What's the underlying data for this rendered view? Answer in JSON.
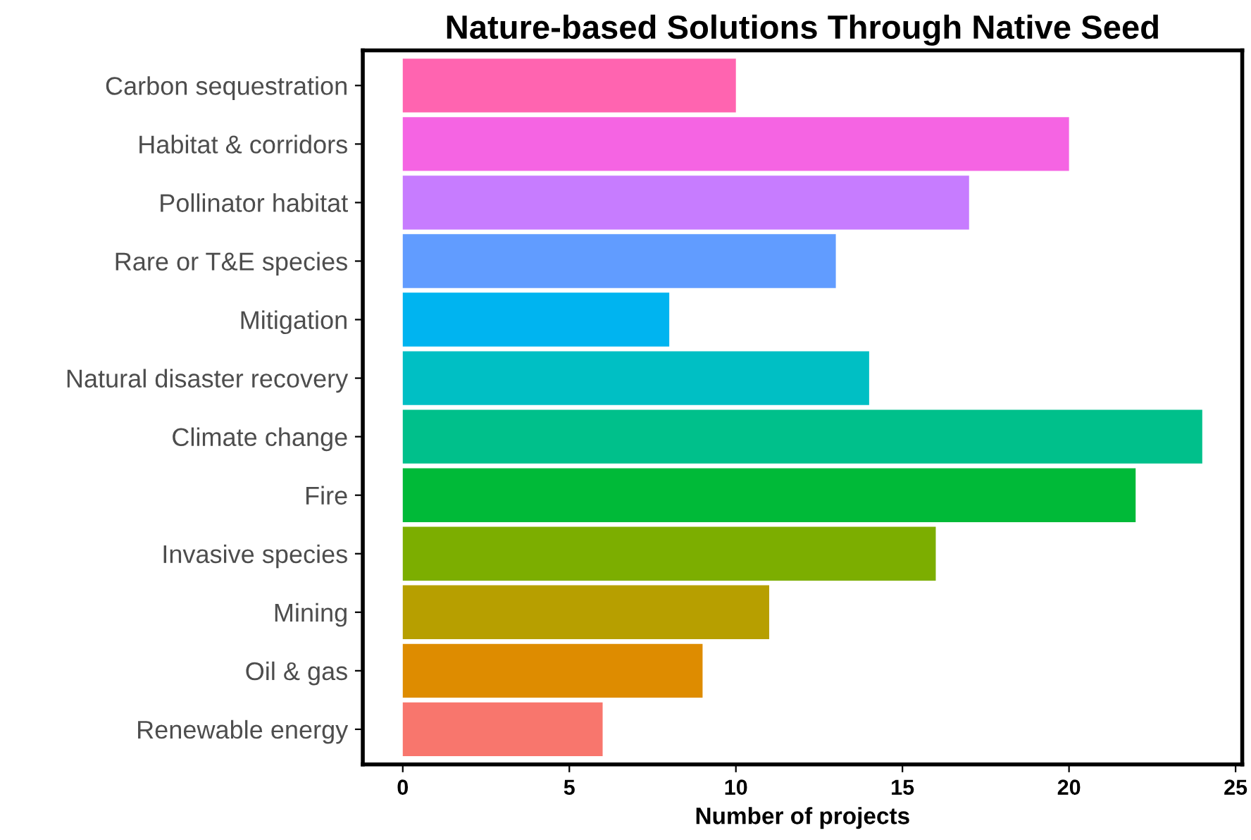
{
  "chart_data": {
    "type": "bar",
    "orientation": "horizontal",
    "title": "Nature-based Solutions Through Native Seed",
    "xlabel": "Number of projects",
    "categories": [
      "Carbon sequestration",
      "Habitat & corridors",
      "Pollinator habitat",
      "Rare or T&E species",
      "Mitigation",
      "Natural disaster recovery",
      "Climate change",
      "Fire",
      "Invasive species",
      "Mining",
      "Oil & gas",
      "Renewable energy"
    ],
    "values": [
      10,
      20,
      17,
      13,
      8,
      14,
      24,
      22,
      16,
      11,
      9,
      6
    ],
    "colors": [
      "#FF64B0",
      "#F564E3",
      "#C77CFF",
      "#619CFF",
      "#00B4F0",
      "#00BFC4",
      "#00C08B",
      "#00BA38",
      "#7CAE00",
      "#B79F00",
      "#DE8C00",
      "#F8766D"
    ],
    "xlim": [
      -1.2,
      25.2
    ],
    "xticks": [
      0,
      5,
      10,
      15,
      20,
      25
    ],
    "grid": false,
    "legend": false
  }
}
